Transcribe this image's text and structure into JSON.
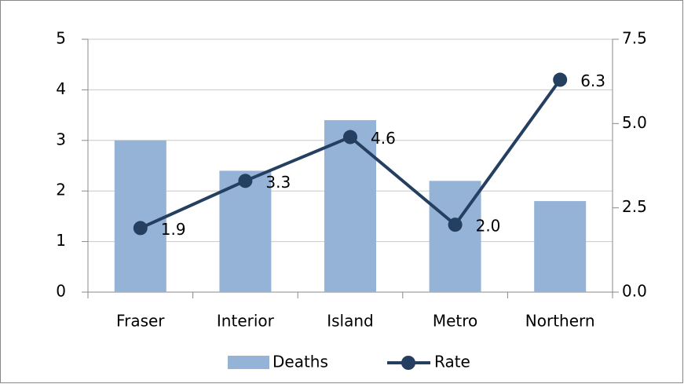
{
  "chart_data": {
    "type": "bar-line",
    "categories": [
      "Fraser",
      "Interior",
      "Island",
      "Metro",
      "Northern"
    ],
    "series": [
      {
        "name": "Deaths",
        "type": "bar",
        "color": "#95b3d7",
        "values": [
          3.0,
          2.4,
          3.4,
          2.2,
          1.8
        ]
      },
      {
        "name": "Rate",
        "type": "line",
        "axis": "y2",
        "color": "#243f60",
        "values": [
          1.9,
          3.3,
          4.6,
          2.0,
          6.3
        ],
        "value_labels": [
          "1.9",
          "3.3",
          "4.6",
          "2.0",
          "6.3"
        ]
      }
    ],
    "ylim": [
      0,
      5
    ],
    "yticks": [
      0,
      1,
      2,
      3,
      4,
      5
    ],
    "y2lim": [
      0,
      7.5
    ],
    "y2ticks": [
      {
        "value": 0,
        "label": "0.0"
      },
      2.5,
      {
        "value": 5,
        "label": "5.0"
      },
      7.5
    ],
    "grid": true,
    "legend": "bottom"
  }
}
